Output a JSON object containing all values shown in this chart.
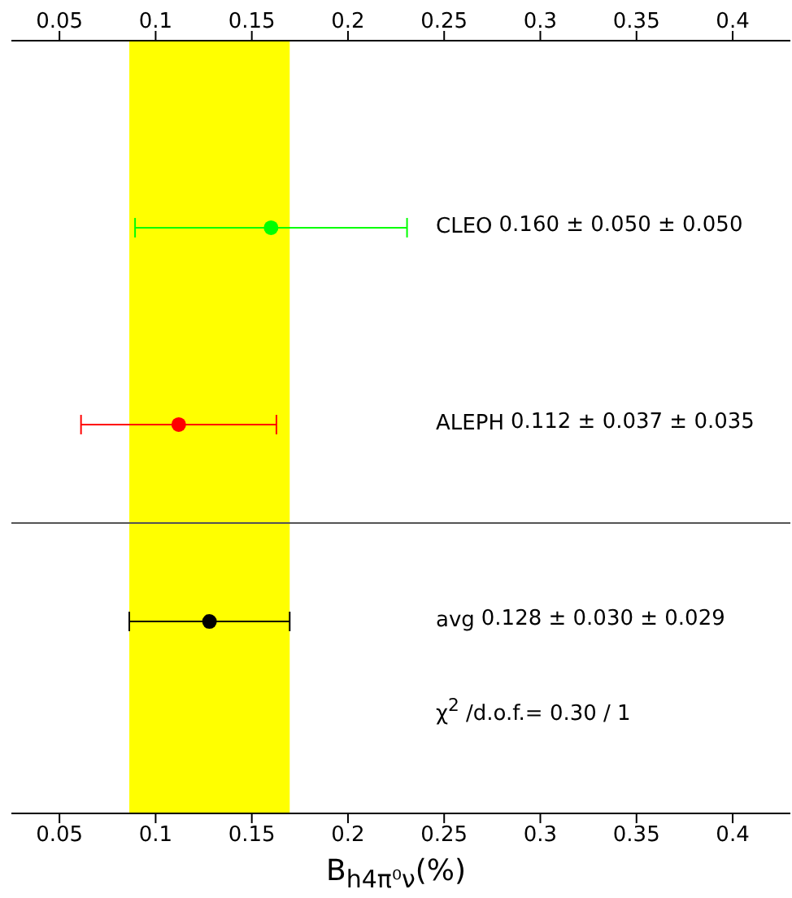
{
  "chart_data": {
    "type": "scatter",
    "orientation": "horizontal",
    "categories": [
      "CLEO",
      "ALEPH",
      "avg"
    ],
    "values": [
      0.16,
      0.112,
      0.128
    ],
    "errors": [
      0.0707,
      0.0508,
      0.0417
    ],
    "colors": [
      "#00ff00",
      "#ff0000",
      "#000000"
    ],
    "xlabel": "B$_{h4π⁰ν}$(%)",
    "xlim": [
      0.025,
      0.43
    ],
    "xticks": [
      0.05,
      0.1,
      0.15,
      0.2,
      0.25,
      0.3,
      0.35,
      0.4
    ],
    "x2lim": [
      0.025,
      0.43
    ],
    "x2ticks": [
      0.05,
      0.1,
      0.15,
      0.2,
      0.25,
      0.3,
      0.35,
      0.4
    ],
    "bands": [
      {
        "axis": "x",
        "from": 0.0863,
        "to": 0.1697,
        "color": "#ffff00"
      }
    ],
    "annotations": [
      "0.160 ± 0.050 ± 0.050",
      "0.112 ± 0.037 ± 0.035",
      "0.128 ± 0.030 ± 0.029",
      "χ$^{2}$ /d.o.f.= 0.30 / 1"
    ],
    "marker": "circle"
  }
}
